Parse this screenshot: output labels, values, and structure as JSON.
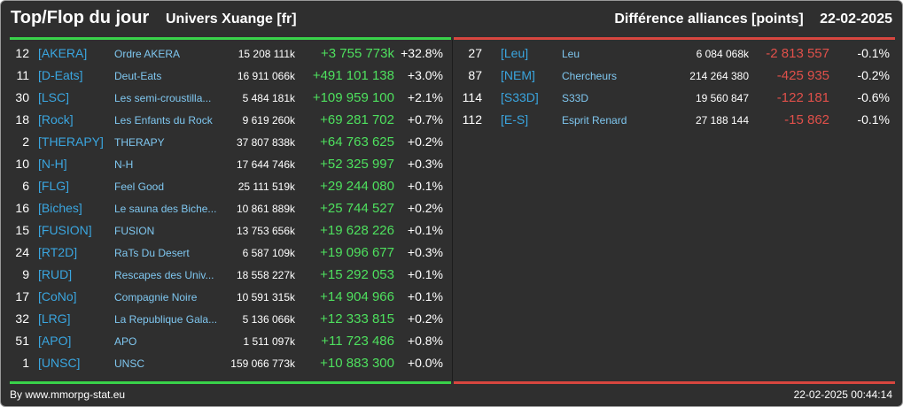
{
  "header": {
    "title": "Top/Flop du jour",
    "universe": "Univers Xuange [fr]",
    "subtitle": "Différence alliances [points]",
    "date": "22-02-2025"
  },
  "colors": {
    "background": "#2f2f2f",
    "top_accent": "#39d24a",
    "flop_accent": "#d8463f",
    "tag": "#3aa6e0",
    "name": "#7fc7f0",
    "gain": "#4ee05e",
    "loss": "#e0504a"
  },
  "top": [
    {
      "rank": "12",
      "tag": "[AKERA]",
      "name": "Ordre AKERA",
      "points": "15 208 111k",
      "diff": "+3 755 773k",
      "pct": "+32.8%"
    },
    {
      "rank": "11",
      "tag": "[D-Eats]",
      "name": "Deut-Eats",
      "points": "16 911 066k",
      "diff": "+491 101 138",
      "pct": "+3.0%"
    },
    {
      "rank": "30",
      "tag": "[LSC]",
      "name": "Les semi-croustilla...",
      "points": "5 484 181k",
      "diff": "+109 959 100",
      "pct": "+2.1%"
    },
    {
      "rank": "18",
      "tag": "[Rock]",
      "name": "Les Enfants du Rock",
      "points": "9 619 260k",
      "diff": "+69 281 702",
      "pct": "+0.7%"
    },
    {
      "rank": "2",
      "tag": "[THERAPY]",
      "name": "THERAPY",
      "points": "37 807 838k",
      "diff": "+64 763 625",
      "pct": "+0.2%"
    },
    {
      "rank": "10",
      "tag": "[N-H]",
      "name": "N-H",
      "points": "17 644 746k",
      "diff": "+52 325 997",
      "pct": "+0.3%"
    },
    {
      "rank": "6",
      "tag": "[FLG]",
      "name": "Feel Good",
      "points": "25 111 519k",
      "diff": "+29 244 080",
      "pct": "+0.1%"
    },
    {
      "rank": "16",
      "tag": "[Biches]",
      "name": "Le sauna des Biche...",
      "points": "10 861 889k",
      "diff": "+25 744 527",
      "pct": "+0.2%"
    },
    {
      "rank": "15",
      "tag": "[FUSION]",
      "name": "FUSION",
      "points": "13 753 656k",
      "diff": "+19 628 226",
      "pct": "+0.1%"
    },
    {
      "rank": "24",
      "tag": "[RT2D]",
      "name": "RaTs Du Desert",
      "points": "6 587 109k",
      "diff": "+19 096 677",
      "pct": "+0.3%"
    },
    {
      "rank": "9",
      "tag": "[RUD]",
      "name": "Rescapes des Univ...",
      "points": "18 558 227k",
      "diff": "+15 292 053",
      "pct": "+0.1%"
    },
    {
      "rank": "17",
      "tag": "[CoNo]",
      "name": "Compagnie Noire",
      "points": "10 591 315k",
      "diff": "+14 904 966",
      "pct": "+0.1%"
    },
    {
      "rank": "32",
      "tag": "[LRG]",
      "name": "La Republique Gala...",
      "points": "5 136 066k",
      "diff": "+12 333 815",
      "pct": "+0.2%"
    },
    {
      "rank": "51",
      "tag": "[APO]",
      "name": "APO",
      "points": "1 511 097k",
      "diff": "+11 723 486",
      "pct": "+0.8%"
    },
    {
      "rank": "1",
      "tag": "[UNSC]",
      "name": "UNSC",
      "points": "159 066 773k",
      "diff": "+10 883 300",
      "pct": "+0.0%"
    }
  ],
  "flop": [
    {
      "rank": "27",
      "tag": "[Leu]",
      "name": "Leu",
      "points": "6 084 068k",
      "diff": "-2 813 557",
      "pct": "-0.1%"
    },
    {
      "rank": "87",
      "tag": "[NEM]",
      "name": "Chercheurs",
      "points": "214 264 380",
      "diff": "-425 935",
      "pct": "-0.2%"
    },
    {
      "rank": "114",
      "tag": "[S33D]",
      "name": "S33D",
      "points": "19 560 847",
      "diff": "-122 181",
      "pct": "-0.6%"
    },
    {
      "rank": "112",
      "tag": "[E-S]",
      "name": "Esprit Renard",
      "points": "27 188 144",
      "diff": "-15 862",
      "pct": "-0.1%"
    }
  ],
  "footer": {
    "credit": "By www.mmorpg-stat.eu",
    "timestamp": "22-02-2025 00:44:14"
  }
}
